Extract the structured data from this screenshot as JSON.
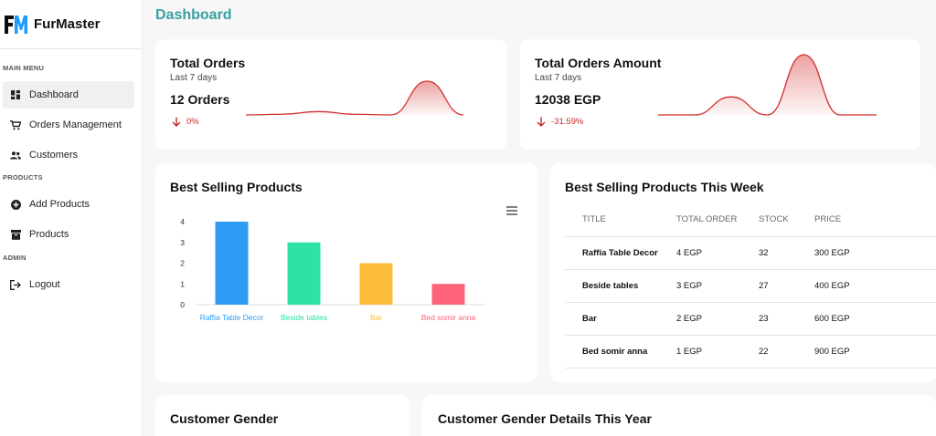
{
  "brand": {
    "name": "FurMaster"
  },
  "sidebar": {
    "sections": {
      "main_menu": "MAIN MENU",
      "products": "PRODUCTS",
      "admin": "ADMIN"
    },
    "items": [
      {
        "label": "Dashboard",
        "icon": "dashboard-icon",
        "active": true
      },
      {
        "label": "Orders Management",
        "icon": "cart-icon"
      },
      {
        "label": "Customers",
        "icon": "people-icon"
      },
      {
        "label": "Add Products",
        "icon": "add-circle-icon"
      },
      {
        "label": "Products",
        "icon": "inventory-icon"
      },
      {
        "label": "Logout",
        "icon": "logout-icon"
      }
    ]
  },
  "page": {
    "title": "Dashboard"
  },
  "total_orders": {
    "title": "Total Orders",
    "subtitle": "Last 7 days",
    "value": "12 Orders",
    "change": "0%"
  },
  "total_amount": {
    "title": "Total Orders Amount",
    "subtitle": "Last 7 days",
    "value": "12038 EGP",
    "change": "-31.59%"
  },
  "best_selling": {
    "title": "Best Selling Products"
  },
  "best_week": {
    "title": "Best Selling Products This Week",
    "headers": [
      "TITLE",
      "TOTAL ORDER",
      "STOCK",
      "PRICE"
    ],
    "rows": [
      {
        "title": "Raffia Table Decor",
        "total": "4 EGP",
        "stock": "32",
        "price": "300 EGP"
      },
      {
        "title": "Beside tables",
        "total": "3 EGP",
        "stock": "27",
        "price": "400 EGP"
      },
      {
        "title": "Bar",
        "total": "2 EGP",
        "stock": "23",
        "price": "600 EGP"
      },
      {
        "title": "Bed somir anna",
        "total": "1 EGP",
        "stock": "22",
        "price": "900 EGP"
      }
    ]
  },
  "customer_gender": {
    "title": "Customer Gender"
  },
  "gender_details": {
    "title": "Customer Gender Details This Year"
  },
  "colors": {
    "accent": "#3a9fa3",
    "negative": "#c62828",
    "sparkline": "#d32f2f"
  },
  "chart_data": [
    {
      "type": "bar",
      "categories": [
        "Raffia Table Decor",
        "Beside tables",
        "Bar",
        "Bed somir anna"
      ],
      "values": [
        4,
        3,
        2,
        1
      ],
      "colors": [
        "#2e9cf5",
        "#2de2a6",
        "#fdbb3b",
        "#fd6379"
      ],
      "ylim": [
        0,
        4
      ],
      "yticks": [
        0,
        1,
        2,
        3,
        4
      ],
      "grid": false,
      "title": "",
      "xlabel": "",
      "ylabel": ""
    },
    {
      "type": "area",
      "values": [
        0,
        0.02,
        0.1,
        0.02,
        0,
        1.0,
        0
      ],
      "title": "",
      "xlabel": "",
      "ylabel": ""
    },
    {
      "type": "area",
      "values": [
        0,
        0,
        0.3,
        0,
        1.0,
        0,
        0
      ],
      "title": "",
      "xlabel": "",
      "ylabel": ""
    }
  ]
}
